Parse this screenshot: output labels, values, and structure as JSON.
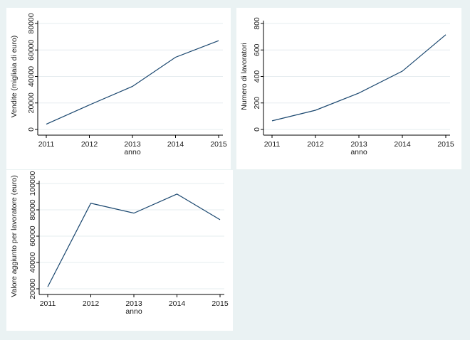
{
  "chart_data": [
    {
      "type": "line",
      "xlabel": "anno",
      "ylabel": "Vendite (migliaia di euro)",
      "x": [
        2011,
        2012,
        2013,
        2014,
        2015
      ],
      "series": [
        {
          "values": [
            4000,
            18500,
            32500,
            54500,
            67000
          ]
        }
      ],
      "xticks": [
        "2011",
        "2012",
        "2013",
        "2014",
        "2015"
      ],
      "yticks": [
        "0",
        "20000",
        "40000",
        "60000",
        "80000"
      ],
      "ytick_values": [
        0,
        20000,
        40000,
        60000,
        80000
      ],
      "xlim": [
        2011,
        2015
      ],
      "ylim": [
        0,
        80000
      ],
      "grid": true,
      "color": "#1a476f"
    },
    {
      "type": "line",
      "xlabel": "anno",
      "ylabel": "Numero di lavoratori",
      "x": [
        2011,
        2012,
        2013,
        2014,
        2015
      ],
      "series": [
        {
          "values": [
            65,
            145,
            275,
            440,
            715
          ]
        }
      ],
      "xticks": [
        "2011",
        "2012",
        "2013",
        "2014",
        "2015"
      ],
      "yticks": [
        "0",
        "200",
        "400",
        "600",
        "800"
      ],
      "ytick_values": [
        0,
        200,
        400,
        600,
        800
      ],
      "xlim": [
        2011,
        2015
      ],
      "ylim": [
        0,
        800
      ],
      "grid": true,
      "color": "#1a476f"
    },
    {
      "type": "line",
      "xlabel": "anno",
      "ylabel": "Valore aggiunto per lavoratore (euro)",
      "x": [
        2011,
        2012,
        2013,
        2014,
        2015
      ],
      "series": [
        {
          "values": [
            21500,
            85000,
            77500,
            92000,
            72500
          ]
        }
      ],
      "xticks": [
        "2011",
        "2012",
        "2013",
        "2014",
        "2015"
      ],
      "yticks": [
        "20000",
        "40000",
        "60000",
        "80000",
        "100000"
      ],
      "ytick_values": [
        20000,
        40000,
        60000,
        80000,
        100000
      ],
      "xlim": [
        2011,
        2015
      ],
      "ylim": [
        20000,
        100000
      ],
      "grid": true,
      "color": "#1a476f"
    }
  ]
}
